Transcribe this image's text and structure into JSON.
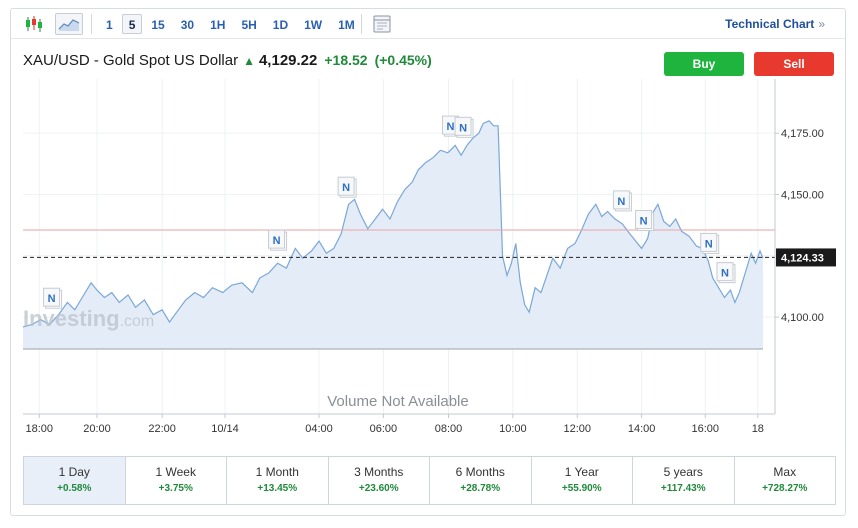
{
  "toolbar": {
    "intervals": [
      "1",
      "5",
      "15",
      "30",
      "1H",
      "5H",
      "1D",
      "1W",
      "1M"
    ],
    "active_interval": "5",
    "technical_chart_label": "Technical Chart",
    "technical_chart_chevron": "»"
  },
  "header": {
    "symbol_name": "XAU/USD - Gold Spot US Dollar",
    "price": "4,129.22",
    "change": "+18.52",
    "change_pct": "(+0.45%)",
    "buy_label": "Buy",
    "sell_label": "Sell"
  },
  "colors": {
    "up": "#1f8a3a",
    "buy": "#1fb43e",
    "sell": "#e8392e",
    "line": "#7aa7d8",
    "area": "#e4edf7",
    "prev_close": "#e8a3a3"
  },
  "chart_data": {
    "type": "area",
    "ylim": [
      4087,
      4193
    ],
    "yticks": [
      4100,
      4125,
      4150,
      4175
    ],
    "ytick_labels": [
      "4,100.00",
      "4,150.00",
      "4,175.00"
    ],
    "current_price": 4124.33,
    "current_price_label": "4,124.33",
    "previous_close": 4135.5,
    "xlim": [
      0,
      1
    ],
    "xticks": [
      {
        "x": 0.022,
        "label": "18:00"
      },
      {
        "x": 0.1,
        "label": "20:00"
      },
      {
        "x": 0.188,
        "label": "22:00"
      },
      {
        "x": 0.273,
        "label": "10/14"
      },
      {
        "x": 0.4,
        "label": "04:00"
      },
      {
        "x": 0.487,
        "label": "06:00"
      },
      {
        "x": 0.575,
        "label": "08:00"
      },
      {
        "x": 0.662,
        "label": "10:00"
      },
      {
        "x": 0.749,
        "label": "12:00"
      },
      {
        "x": 0.836,
        "label": "14:00"
      },
      {
        "x": 0.922,
        "label": "16:00"
      },
      {
        "x": 0.993,
        "label": "18"
      }
    ],
    "points": [
      [
        0.0,
        4096
      ],
      [
        0.012,
        4097
      ],
      [
        0.024,
        4099
      ],
      [
        0.036,
        4097
      ],
      [
        0.048,
        4101
      ],
      [
        0.06,
        4106
      ],
      [
        0.07,
        4103
      ],
      [
        0.082,
        4109
      ],
      [
        0.092,
        4114
      ],
      [
        0.1,
        4111
      ],
      [
        0.11,
        4108
      ],
      [
        0.12,
        4110
      ],
      [
        0.13,
        4106
      ],
      [
        0.142,
        4109
      ],
      [
        0.152,
        4104
      ],
      [
        0.164,
        4107
      ],
      [
        0.176,
        4101
      ],
      [
        0.188,
        4103
      ],
      [
        0.198,
        4098
      ],
      [
        0.21,
        4103
      ],
      [
        0.22,
        4107
      ],
      [
        0.232,
        4110
      ],
      [
        0.244,
        4108
      ],
      [
        0.256,
        4112
      ],
      [
        0.27,
        4110
      ],
      [
        0.282,
        4113
      ],
      [
        0.296,
        4114
      ],
      [
        0.31,
        4110
      ],
      [
        0.32,
        4116
      ],
      [
        0.332,
        4118
      ],
      [
        0.344,
        4122
      ],
      [
        0.356,
        4120
      ],
      [
        0.368,
        4128
      ],
      [
        0.378,
        4124
      ],
      [
        0.39,
        4127
      ],
      [
        0.4,
        4131
      ],
      [
        0.41,
        4126
      ],
      [
        0.42,
        4128
      ],
      [
        0.43,
        4134
      ],
      [
        0.44,
        4146
      ],
      [
        0.448,
        4148
      ],
      [
        0.456,
        4142
      ],
      [
        0.466,
        4136
      ],
      [
        0.476,
        4140
      ],
      [
        0.486,
        4144
      ],
      [
        0.496,
        4140
      ],
      [
        0.506,
        4147
      ],
      [
        0.516,
        4152
      ],
      [
        0.526,
        4155
      ],
      [
        0.534,
        4160
      ],
      [
        0.544,
        4163
      ],
      [
        0.554,
        4165
      ],
      [
        0.564,
        4168
      ],
      [
        0.574,
        4167
      ],
      [
        0.584,
        4170
      ],
      [
        0.592,
        4166
      ],
      [
        0.6,
        4170
      ],
      [
        0.608,
        4173
      ],
      [
        0.616,
        4175
      ],
      [
        0.622,
        4179
      ],
      [
        0.63,
        4180
      ],
      [
        0.636,
        4178
      ],
      [
        0.642,
        4178
      ],
      [
        0.648,
        4125
      ],
      [
        0.654,
        4117
      ],
      [
        0.66,
        4122
      ],
      [
        0.666,
        4130
      ],
      [
        0.672,
        4114
      ],
      [
        0.678,
        4105
      ],
      [
        0.684,
        4102
      ],
      [
        0.692,
        4112
      ],
      [
        0.7,
        4110
      ],
      [
        0.708,
        4117
      ],
      [
        0.716,
        4124
      ],
      [
        0.726,
        4120
      ],
      [
        0.736,
        4128
      ],
      [
        0.746,
        4130
      ],
      [
        0.754,
        4135
      ],
      [
        0.764,
        4142
      ],
      [
        0.774,
        4146
      ],
      [
        0.782,
        4141
      ],
      [
        0.79,
        4143
      ],
      [
        0.8,
        4140
      ],
      [
        0.81,
        4138
      ],
      [
        0.82,
        4134
      ],
      [
        0.828,
        4131
      ],
      [
        0.836,
        4128
      ],
      [
        0.844,
        4132
      ],
      [
        0.852,
        4143
      ],
      [
        0.858,
        4146
      ],
      [
        0.866,
        4139
      ],
      [
        0.874,
        4137
      ],
      [
        0.882,
        4140
      ],
      [
        0.89,
        4135
      ],
      [
        0.9,
        4133
      ],
      [
        0.91,
        4129
      ],
      [
        0.918,
        4128
      ],
      [
        0.926,
        4123
      ],
      [
        0.932,
        4116
      ],
      [
        0.94,
        4112
      ],
      [
        0.948,
        4108
      ],
      [
        0.956,
        4111
      ],
      [
        0.962,
        4106
      ],
      [
        0.968,
        4110
      ],
      [
        0.976,
        4118
      ],
      [
        0.984,
        4126
      ],
      [
        0.99,
        4122
      ],
      [
        0.996,
        4127
      ],
      [
        1.0,
        4124
      ]
    ],
    "news_markers": [
      {
        "x": 0.04,
        "label": "N"
      },
      {
        "x": 0.344,
        "label": "N"
      },
      {
        "x": 0.438,
        "label": "N"
      },
      {
        "x": 0.579,
        "label": "N"
      },
      {
        "x": 0.596,
        "label": "N"
      },
      {
        "x": 0.81,
        "label": "N"
      },
      {
        "x": 0.84,
        "label": "N"
      },
      {
        "x": 0.928,
        "label": "N"
      },
      {
        "x": 0.95,
        "label": "N"
      }
    ],
    "watermark": "Investing",
    "watermark_suffix": ".com",
    "volume_note": "Volume Not Available"
  },
  "periods": [
    {
      "label": "1 Day",
      "value": "+0.58%",
      "active": true
    },
    {
      "label": "1 Week",
      "value": "+3.75%"
    },
    {
      "label": "1 Month",
      "value": "+13.45%"
    },
    {
      "label": "3 Months",
      "value": "+23.60%"
    },
    {
      "label": "6 Months",
      "value": "+28.78%"
    },
    {
      "label": "1 Year",
      "value": "+55.90%"
    },
    {
      "label": "5 years",
      "value": "+117.43%"
    },
    {
      "label": "Max",
      "value": "+728.27%"
    }
  ]
}
